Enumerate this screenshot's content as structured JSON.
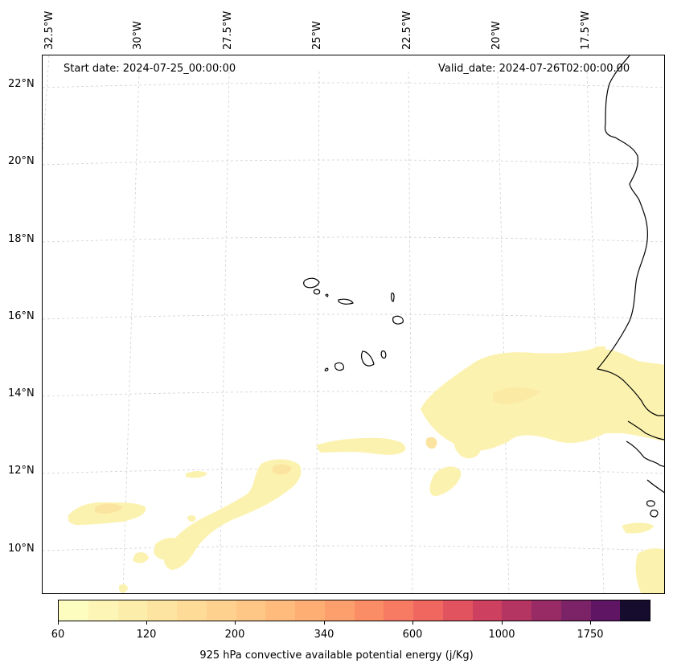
{
  "map": {
    "start_date": "Start date: 2024-07-25_00:00:00",
    "valid_date": "Valid_date: 2024-07-26T02:00:00.00",
    "lon_labels": [
      "32.5°W",
      "30°W",
      "27.5°W",
      "25°W",
      "22.5°W",
      "20°W",
      "17.5°W"
    ],
    "lat_labels": [
      "22°N",
      "20°N",
      "18°N",
      "16°N",
      "14°N",
      "12°N",
      "10°N"
    ],
    "gridlines": true,
    "coastline_color": "#000000"
  },
  "colorbar": {
    "title": "925 hPa convective available potential energy (j/Kg)",
    "tick_labels": [
      "60",
      "120",
      "200",
      "340",
      "600",
      "1000",
      "1750"
    ],
    "colors": [
      "#fcfdbf",
      "#fcf5b5",
      "#fcedab",
      "#fde4a1",
      "#fedb97",
      "#fed28e",
      "#fec785",
      "#febb7c",
      "#feae73",
      "#fd9f6c",
      "#fb8d66",
      "#f77a62",
      "#f0675f",
      "#e1535f",
      "#cd4060",
      "#b43462",
      "#982b66",
      "#7c2267",
      "#5f1564",
      "#160d2e"
    ]
  }
}
